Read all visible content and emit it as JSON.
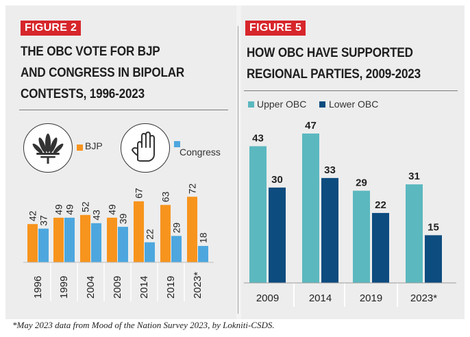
{
  "figure2": {
    "label": "FIGURE 2",
    "title_lines": [
      "THE OBC VOTE FOR BJP",
      "AND CONGRESS IN BIPOLAR",
      "CONTESTS, 1996-2023"
    ],
    "legend": {
      "bjp": "BJP",
      "congress": "Congress"
    }
  },
  "figure5": {
    "label": "FIGURE 5",
    "title_lines": [
      "HOW OBC HAVE SUPPORTED",
      "REGIONAL PARTIES, 2009-2023"
    ],
    "legend": {
      "upper": "Upper OBC",
      "lower": "Lower OBC"
    }
  },
  "colors": {
    "bjp": "#f7941d",
    "congress": "#4da7de",
    "upper_obc": "#5bb8bf",
    "lower_obc": "#0d4c7f",
    "figure_label_bg": "#d7262b"
  },
  "icons": {
    "bjp_logo": "lotus-icon",
    "congress_logo": "hand-icon"
  },
  "footnote": "*May 2023 data from Mood of the Nation Survey 2023, by Lokniti-CSDS.",
  "chart_data": [
    {
      "type": "bar",
      "title": "THE OBC VOTE FOR BJP AND CONGRESS IN BIPOLAR CONTESTS, 1996-2023",
      "categories": [
        "1996",
        "1999",
        "2004",
        "2009",
        "2014",
        "2019",
        "2023*"
      ],
      "series": [
        {
          "name": "BJP",
          "values": [
            42,
            49,
            52,
            49,
            67,
            63,
            72
          ]
        },
        {
          "name": "Congress",
          "values": [
            37,
            49,
            43,
            39,
            22,
            29,
            18
          ]
        }
      ],
      "ylim": [
        0,
        85
      ],
      "legend_position": "top",
      "grid": false
    },
    {
      "type": "bar",
      "title": "HOW OBC HAVE SUPPORTED REGIONAL PARTIES, 2009-2023",
      "categories": [
        "2009",
        "2014",
        "2019",
        "2023*"
      ],
      "series": [
        {
          "name": "Upper OBC",
          "values": [
            43,
            47,
            29,
            31
          ]
        },
        {
          "name": "Lower OBC",
          "values": [
            30,
            33,
            22,
            15
          ]
        }
      ],
      "ylim": [
        0,
        47
      ],
      "legend_position": "top",
      "grid": false
    }
  ]
}
